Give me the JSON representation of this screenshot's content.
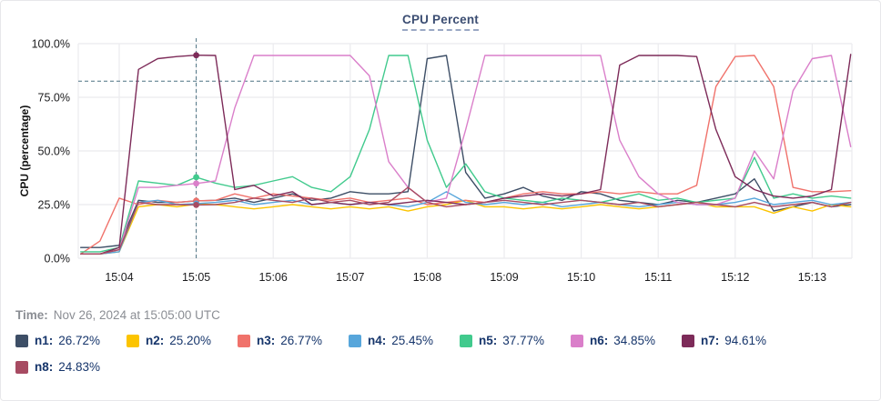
{
  "panel": {
    "title": "CPU Percent"
  },
  "time_row": {
    "label": "Time:",
    "value": "Nov 26, 2024 at 15:05:00 UTC"
  },
  "chart_data": {
    "type": "line",
    "title": "CPU Percent",
    "xlabel": "",
    "ylabel": "CPU (percentage)",
    "ylim": [
      0,
      100
    ],
    "grid": true,
    "legend_position": "bottom",
    "y_ticks": [
      "0.0%",
      "25.0%",
      "50.0%",
      "75.0%",
      "100.0%"
    ],
    "x_ticks": [
      "15:04",
      "15:05",
      "15:06",
      "15:07",
      "15:08",
      "15:09",
      "15:10",
      "15:11",
      "15:12",
      "15:13"
    ],
    "x_start": "15:03:30",
    "x_step_seconds": 15,
    "threshold_percent": 82.5,
    "threshold_color": "#4c7282",
    "crosshair": {
      "index": 6,
      "time": "15:05:00",
      "color": "#4c7282"
    },
    "series": [
      {
        "name": "n1",
        "color": "#3d4e66",
        "value_at_crosshair": "26.72%",
        "values": [
          5,
          5,
          6,
          27,
          26,
          26,
          26.72,
          27,
          28,
          26,
          28,
          30,
          27,
          28,
          31,
          30,
          30,
          31,
          93,
          94.5,
          40,
          28,
          30,
          33,
          29,
          27,
          31,
          30,
          27,
          26,
          25,
          27,
          26,
          28,
          30,
          37,
          22,
          24,
          26,
          24,
          25
        ]
      },
      {
        "name": "n2",
        "color": "#fcc400",
        "value_at_crosshair": "25.20%",
        "values": [
          2,
          2,
          3,
          24,
          25,
          24,
          25.2,
          25,
          24,
          23,
          24,
          25,
          24,
          23,
          24,
          23,
          24,
          22,
          24,
          25,
          27,
          24,
          24,
          23,
          24,
          23,
          24,
          25,
          24,
          23,
          24,
          25,
          26,
          24,
          24,
          24,
          21,
          24,
          22,
          25,
          24
        ]
      },
      {
        "name": "n3",
        "color": "#f0726b",
        "value_at_crosshair": "26.77%",
        "values": [
          2,
          8,
          28,
          25,
          27,
          26,
          26.77,
          27,
          30,
          28,
          30,
          29,
          28,
          27,
          28,
          26,
          27,
          28,
          25,
          26,
          27,
          26,
          28,
          30,
          31,
          30,
          30,
          31,
          30,
          31,
          30,
          30,
          34,
          80,
          94,
          94.5,
          80,
          33,
          31,
          31,
          31.5
        ]
      },
      {
        "name": "n4",
        "color": "#57a6db",
        "value_at_crosshair": "25.45%",
        "values": [
          2,
          2,
          3,
          26,
          27,
          25,
          25.45,
          26,
          27,
          25,
          26,
          27,
          25,
          26,
          25,
          26,
          25,
          24,
          26,
          31,
          26,
          25,
          26,
          25,
          26,
          24,
          25,
          26,
          25,
          24,
          25,
          26,
          25,
          25,
          26,
          28,
          25,
          26,
          27,
          25,
          26
        ]
      },
      {
        "name": "n5",
        "color": "#41ca8d",
        "value_at_crosshair": "37.77%",
        "values": [
          3,
          3,
          5,
          36,
          35,
          34,
          37.77,
          35,
          33,
          34,
          36,
          38,
          33,
          31,
          38,
          60,
          94.5,
          94.5,
          55,
          33,
          44,
          31,
          28,
          27,
          26,
          28,
          27,
          26,
          28,
          30,
          27,
          28,
          26,
          27,
          28,
          47,
          28,
          30,
          28,
          29,
          28
        ]
      },
      {
        "name": "n6",
        "color": "#da7fca",
        "value_at_crosshair": "34.85%",
        "values": [
          2,
          2,
          4,
          33,
          33,
          34,
          34.85,
          36,
          70,
          94.5,
          94.5,
          94.5,
          94.5,
          94.5,
          94.5,
          85,
          45,
          33,
          26,
          28,
          60,
          94.5,
          94.5,
          94.5,
          94.5,
          94.5,
          94.5,
          94.5,
          55,
          38,
          30,
          26,
          25,
          25,
          28,
          50,
          37,
          78,
          93,
          94.5,
          52
        ]
      },
      {
        "name": "n7",
        "color": "#7d2b59",
        "value_at_crosshair": "94.61%",
        "values": [
          2,
          2,
          5,
          88,
          93,
          94,
          94.61,
          94.5,
          32,
          34,
          29,
          31,
          25,
          26,
          25,
          26,
          25,
          26,
          27,
          26,
          25,
          26,
          28,
          29,
          30,
          29,
          30,
          32,
          90,
          94.5,
          94.5,
          94.5,
          94,
          60,
          38,
          32,
          29,
          28,
          29,
          32,
          95
        ]
      },
      {
        "name": "n8",
        "color": "#a74b62",
        "value_at_crosshair": "24.83%",
        "values": [
          2,
          2,
          4,
          26,
          25,
          25,
          24.83,
          25,
          26,
          28,
          27,
          26,
          28,
          26,
          27,
          25,
          26,
          33,
          26,
          24,
          25,
          26,
          27,
          26,
          25,
          26,
          27,
          26,
          25,
          26,
          24,
          25,
          26,
          25,
          24,
          26,
          24,
          25,
          26,
          24,
          26
        ]
      }
    ]
  }
}
